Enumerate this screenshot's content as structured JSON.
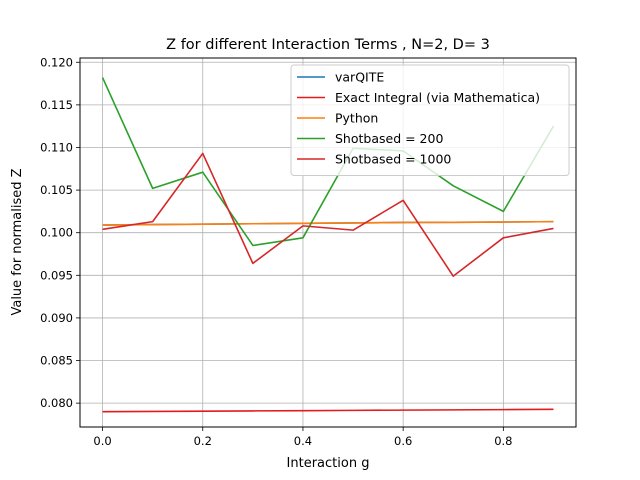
{
  "chart_data": {
    "type": "line",
    "title": "Z for different Interaction Terms , N=2, D= 3",
    "xlabel": "Interaction g",
    "ylabel": "Value for normalised Z",
    "xlim": [
      -0.045,
      0.945
    ],
    "ylim": [
      0.0772,
      0.1205
    ],
    "grid": true,
    "legend_position": "top-right",
    "x_ticks": [
      0.0,
      0.2,
      0.4,
      0.6,
      0.8
    ],
    "x_tick_labels": [
      "0.0",
      "0.2",
      "0.4",
      "0.6",
      "0.8"
    ],
    "y_ticks": [
      0.08,
      0.085,
      0.09,
      0.095,
      0.1,
      0.105,
      0.11,
      0.115,
      0.12
    ],
    "y_tick_labels": [
      "0.080",
      "0.085",
      "0.090",
      "0.095",
      "0.100",
      "0.105",
      "0.110",
      "0.115",
      "0.120"
    ],
    "x": [
      0.0,
      0.1,
      0.2,
      0.3,
      0.4,
      0.5,
      0.6,
      0.7,
      0.8,
      0.9
    ],
    "series": [
      {
        "name": "varQITE",
        "color": "#1f77b4",
        "values": [
          0.1009,
          0.10095,
          0.101,
          0.10105,
          0.1011,
          0.10115,
          0.1012,
          0.10122,
          0.10125,
          0.1013
        ]
      },
      {
        "name": "Exact Integral (via Mathematica)",
        "color": "#e41a1c",
        "values": [
          0.079,
          0.07903,
          0.07906,
          0.07909,
          0.07912,
          0.07915,
          0.07918,
          0.07921,
          0.07924,
          0.07927
        ]
      },
      {
        "name": "Python",
        "color": "#ff7f0e",
        "values": [
          0.1009,
          0.10095,
          0.101,
          0.10105,
          0.1011,
          0.10115,
          0.1012,
          0.10122,
          0.10125,
          0.1013
        ]
      },
      {
        "name": "Shotbased = 200",
        "color": "#2ca02c",
        "values": [
          0.1182,
          0.1052,
          0.1071,
          0.0985,
          0.0994,
          0.1099,
          0.1096,
          0.1055,
          0.1025,
          0.1125
        ]
      },
      {
        "name": "Shotbased = 1000",
        "color": "#d62728",
        "values": [
          0.1004,
          0.1013,
          0.1093,
          0.0964,
          0.1008,
          0.1003,
          0.1038,
          0.0949,
          0.0994,
          0.1005
        ]
      }
    ]
  }
}
